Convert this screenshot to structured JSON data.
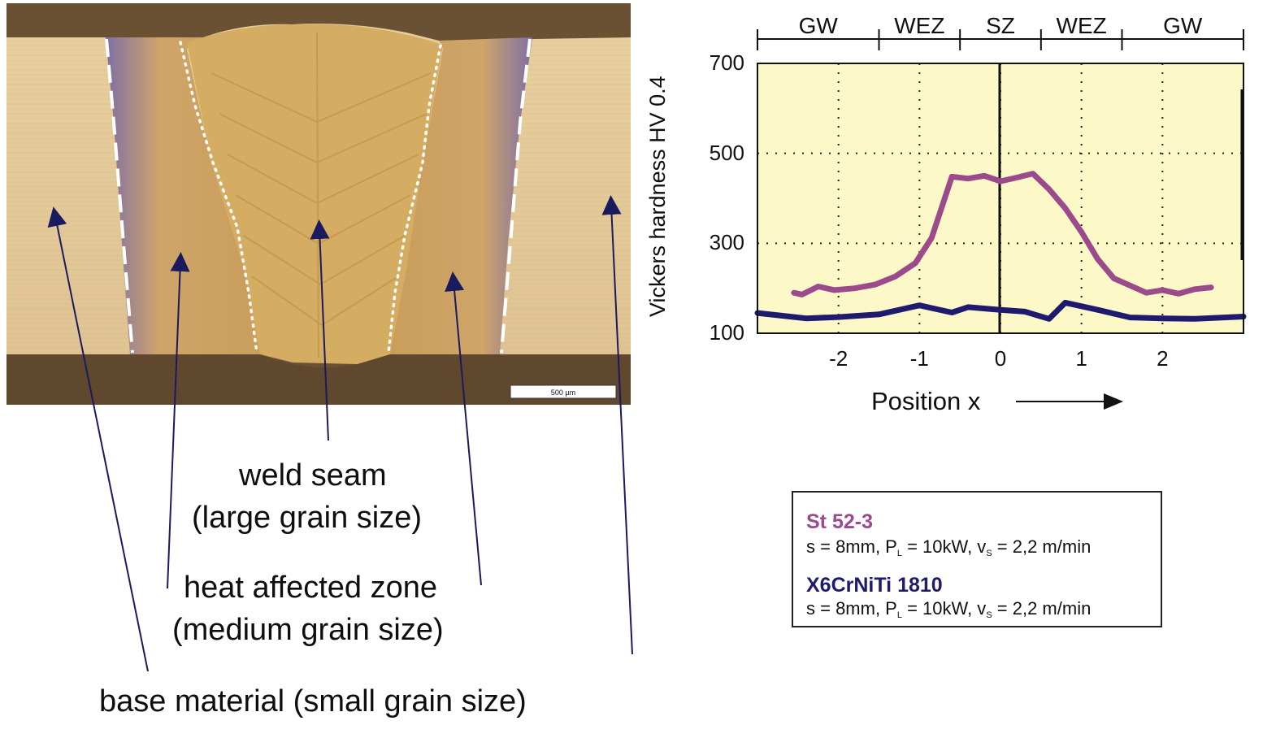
{
  "micrograph": {
    "scale_bar": "500 µm",
    "labels": {
      "weld_seam_1": "weld seam",
      "weld_seam_2": "(large grain size)",
      "haz_1": "heat affected zone",
      "haz_2": "(medium grain size)",
      "base": "base material (small grain size)"
    }
  },
  "colors": {
    "series1": "#9b4a8c",
    "series2": "#1e1a6e",
    "plot_bg": "#fdf8c8",
    "arrow": "#1a1a5e"
  },
  "chart_data": {
    "type": "line",
    "title": "",
    "xlabel": "Position x",
    "ylabel": "Vickers hardness HV 0.4",
    "xlim": [
      -3,
      3
    ],
    "ylim": [
      100,
      700
    ],
    "xticks": [
      -2,
      -1,
      0,
      1,
      2
    ],
    "xtick_labels": [
      "-2",
      "-1",
      "0",
      "1",
      "2"
    ],
    "yticks": [
      100,
      300,
      500,
      700
    ],
    "ytick_labels": [
      "100",
      "300",
      "500",
      "700"
    ],
    "grid": true,
    "zones": [
      {
        "label": "GW",
        "from": -3,
        "to": -1.5
      },
      {
        "label": "WEZ",
        "from": -1.5,
        "to": -0.5
      },
      {
        "label": "SZ",
        "from": -0.5,
        "to": 0.5
      },
      {
        "label": "WEZ",
        "from": 0.5,
        "to": 1.5
      },
      {
        "label": "GW",
        "from": 1.5,
        "to": 3
      }
    ],
    "series": [
      {
        "name": "St 52-3",
        "params": "s = 8mm, P",
        "x": [
          -2.55,
          -2.45,
          -2.25,
          -2.05,
          -1.8,
          -1.55,
          -1.3,
          -1.05,
          -0.85,
          -0.6,
          -0.4,
          -0.2,
          0,
          0.2,
          0.4,
          0.6,
          0.8,
          1.0,
          1.2,
          1.4,
          1.6,
          1.8,
          2.0,
          2.2,
          2.4,
          2.6
        ],
        "values": [
          190,
          186,
          204,
          196,
          200,
          208,
          226,
          256,
          312,
          448,
          444,
          450,
          438,
          446,
          455,
          420,
          378,
          325,
          265,
          222,
          206,
          190,
          196,
          188,
          198,
          202
        ]
      },
      {
        "name": "X6CrNiTi 1810",
        "params": "s = 8mm, P",
        "x": [
          -3,
          -2.6,
          -2.4,
          -2.0,
          -1.5,
          -1.0,
          -0.6,
          -0.4,
          0,
          0.3,
          0.6,
          0.8,
          1.2,
          1.6,
          2.0,
          2.4,
          3.0
        ],
        "values": [
          145,
          137,
          133,
          136,
          142,
          162,
          146,
          158,
          152,
          148,
          132,
          168,
          152,
          135,
          133,
          132,
          137
        ]
      }
    ]
  },
  "legend": {
    "s1_name": "St 52-3",
    "s1_a": "s = 8mm, P",
    "s1_sub_l": "L",
    "s1_b": " = 10kW, v",
    "s1_sub_s": "S",
    "s1_c": " = 2,2 m/min",
    "s2_name": "X6CrNiTi 1810",
    "s2_a": "s = 8mm, P",
    "s2_sub_l": "L",
    "s2_b": " = 10kW, v",
    "s2_sub_s": "S",
    "s2_c": " = 2,2 m/min"
  }
}
